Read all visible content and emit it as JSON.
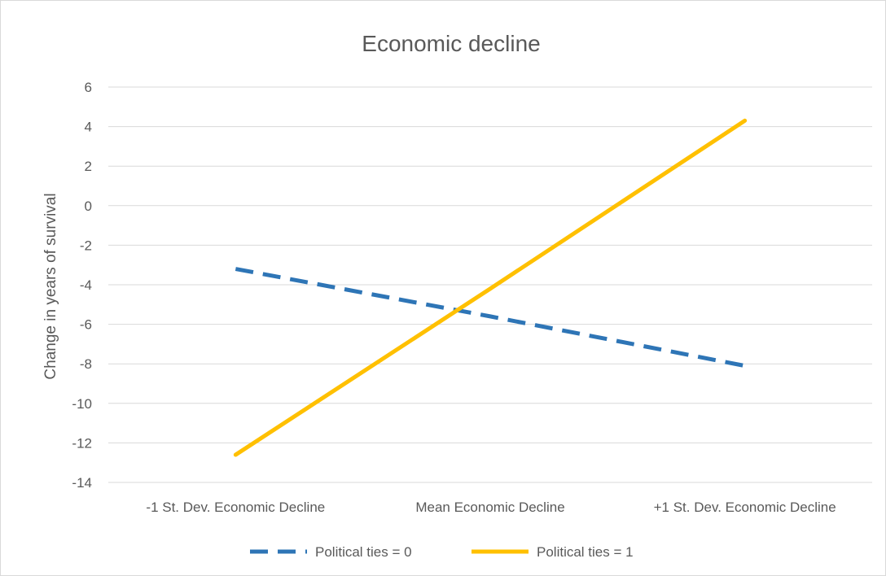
{
  "chart_data": {
    "type": "line",
    "title": "Economic decline",
    "xlabel": "",
    "ylabel": "Change in years of survival",
    "categories": [
      "-1 St. Dev. Economic Decline",
      "Mean Economic Decline",
      "+1 St. Dev. Economic Decline"
    ],
    "ylim": [
      -14,
      6
    ],
    "yticks": [
      6,
      4,
      2,
      0,
      -2,
      -4,
      -6,
      -8,
      -10,
      -12,
      -14
    ],
    "grid": true,
    "legend_position": "bottom",
    "series": [
      {
        "name": "Political ties = 0",
        "values": [
          -3.2,
          -5.6,
          -8.1
        ],
        "color": "#2e75b6",
        "style": "dashed"
      },
      {
        "name": "Political ties = 1",
        "values": [
          -12.6,
          -4.2,
          4.3
        ],
        "color": "#ffc000",
        "style": "solid"
      }
    ]
  }
}
